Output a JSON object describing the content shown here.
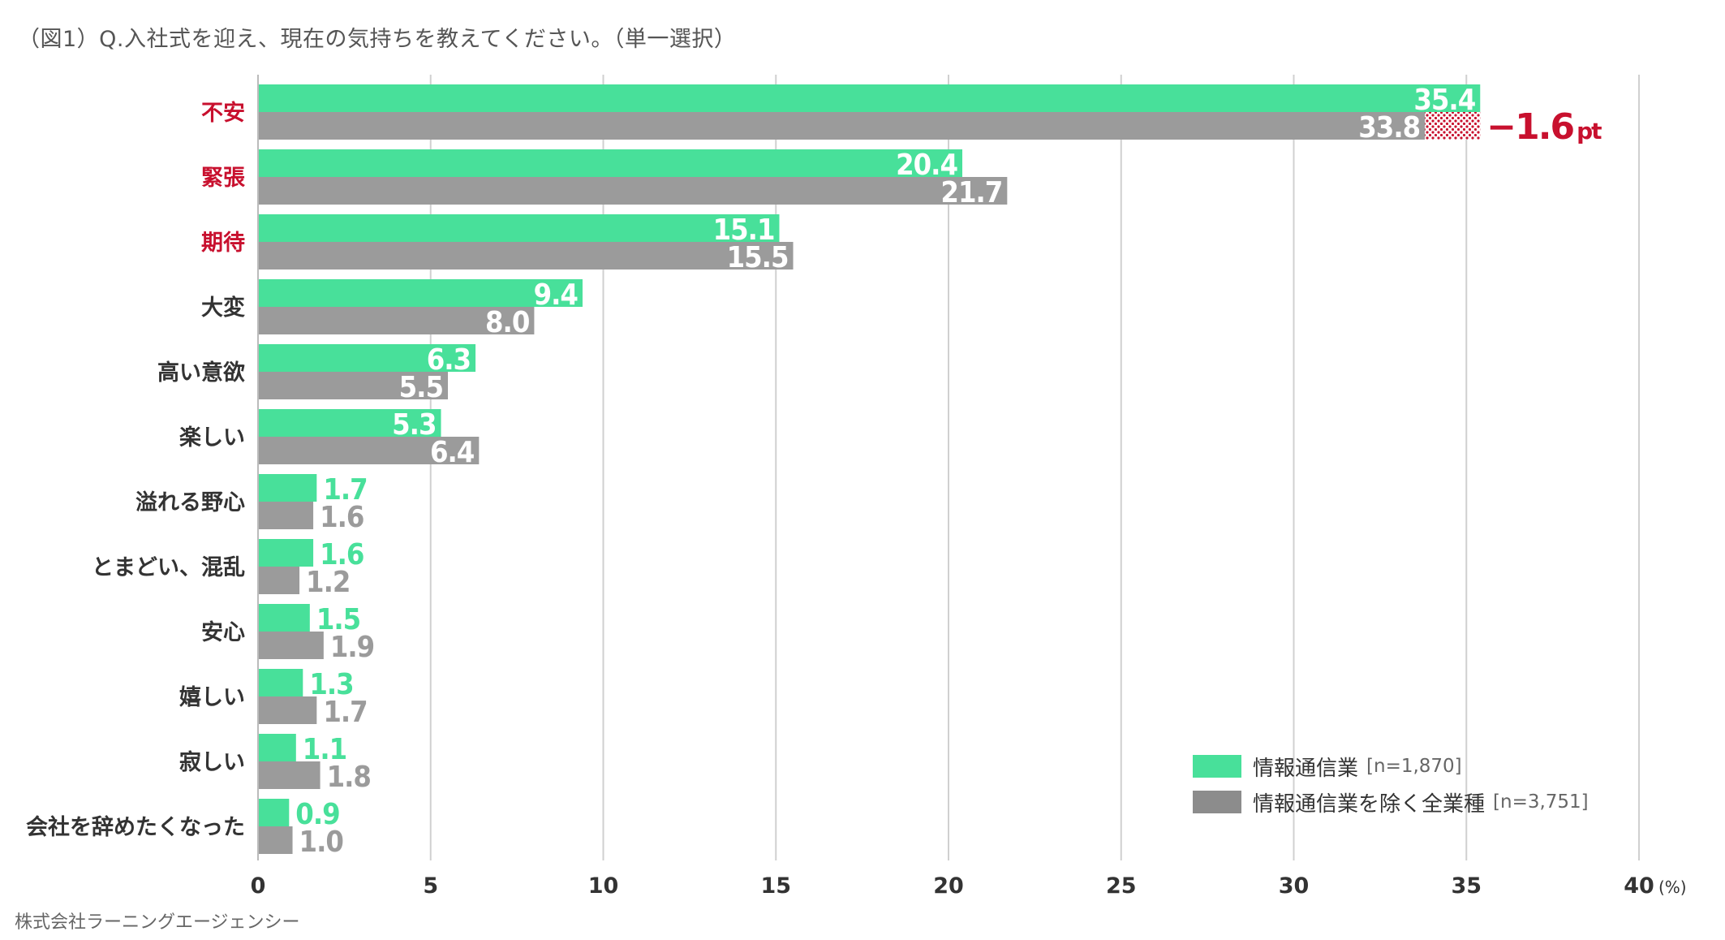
{
  "title": "（図1）Q.入社式を迎え、現在の気持ちを教えてください。（単一選択）",
  "source": "株式会社ラーニングエージェンシー",
  "colors": {
    "series1": "#48e09a",
    "series2": "#9b9b9b",
    "highlight": "#c8102e",
    "grid": "#d0d0d0"
  },
  "chart_data": {
    "type": "bar",
    "orientation": "horizontal",
    "categories": [
      "不安",
      "緊張",
      "期待",
      "大変",
      "高い意欲",
      "楽しい",
      "溢れる野心",
      "とまどい、混乱",
      "安心",
      "嬉しい",
      "寂しい",
      "会社を辞めたくなった"
    ],
    "highlighted_categories": [
      "不安",
      "緊張",
      "期待"
    ],
    "series": [
      {
        "name": "情報通信業",
        "n_label": "[n=1,870]",
        "values": [
          35.4,
          20.4,
          15.1,
          9.4,
          6.3,
          5.3,
          1.7,
          1.6,
          1.5,
          1.3,
          1.1,
          0.9
        ]
      },
      {
        "name": "情報通信業を除く全業種",
        "n_label": "[n=3,751]",
        "values": [
          33.8,
          21.7,
          15.5,
          8.0,
          5.5,
          6.4,
          1.6,
          1.2,
          1.9,
          1.7,
          1.8,
          1.0
        ]
      }
    ],
    "xlim": [
      0,
      40
    ],
    "xticks": [
      "0",
      "5",
      "10",
      "15",
      "20",
      "25",
      "30",
      "35",
      "40"
    ],
    "x_unit": "(%)",
    "grid": true,
    "legend_position": "bottom-right",
    "annotation": {
      "big": "−1.6",
      "unit": "pt",
      "category": "不安"
    }
  }
}
